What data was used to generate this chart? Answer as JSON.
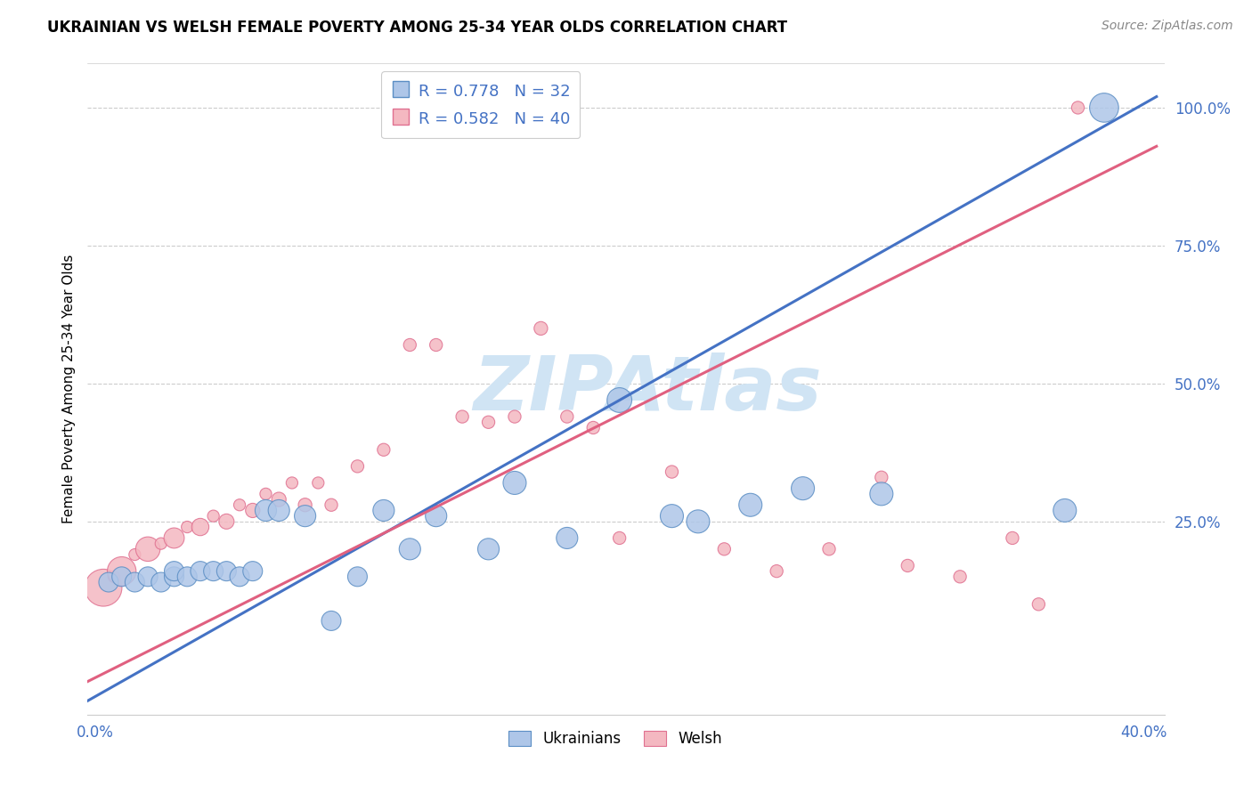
{
  "title": "UKRAINIAN VS WELSH FEMALE POVERTY AMONG 25-34 YEAR OLDS CORRELATION CHART",
  "source": "Source: ZipAtlas.com",
  "ylabel": "Female Poverty Among 25-34 Year Olds",
  "xlim": [
    -0.003,
    0.408
  ],
  "ylim": [
    -0.1,
    1.08
  ],
  "xticks": [
    0.0,
    0.05,
    0.1,
    0.15,
    0.2,
    0.25,
    0.3,
    0.35,
    0.4
  ],
  "xticklabels": [
    "0.0%",
    "",
    "",
    "",
    "",
    "",
    "",
    "",
    "40.0%"
  ],
  "ytick_vals": [
    0.25,
    0.5,
    0.75,
    1.0
  ],
  "yticklabels_right": [
    "25.0%",
    "50.0%",
    "75.0%",
    "100.0%"
  ],
  "legend_label_blue": "Ukrainians",
  "legend_label_pink": "Welsh",
  "legend_line1": "R = 0.778   N = 32",
  "legend_line2": "R = 0.582   N = 40",
  "blue_color": "#aec6e8",
  "pink_color": "#f4b8c1",
  "blue_edge_color": "#5b8ec4",
  "pink_edge_color": "#e07090",
  "blue_line_color": "#4472c4",
  "pink_line_color": "#e06080",
  "watermark": "ZIPAtlas",
  "watermark_color": "#d0e4f4",
  "blue_line_x0": -0.003,
  "blue_line_y0": -0.075,
  "blue_line_x1": 0.405,
  "blue_line_y1": 1.02,
  "pink_line_x0": -0.003,
  "pink_line_y0": -0.04,
  "pink_line_x1": 0.405,
  "pink_line_y1": 0.93,
  "blue_scatter_x": [
    0.005,
    0.01,
    0.015,
    0.02,
    0.025,
    0.03,
    0.03,
    0.035,
    0.04,
    0.045,
    0.05,
    0.055,
    0.06,
    0.065,
    0.07,
    0.08,
    0.09,
    0.1,
    0.11,
    0.12,
    0.13,
    0.15,
    0.16,
    0.18,
    0.2,
    0.22,
    0.23,
    0.25,
    0.27,
    0.3,
    0.37,
    0.385
  ],
  "blue_scatter_y": [
    0.14,
    0.15,
    0.14,
    0.15,
    0.14,
    0.15,
    0.16,
    0.15,
    0.16,
    0.16,
    0.16,
    0.15,
    0.16,
    0.27,
    0.27,
    0.26,
    0.07,
    0.15,
    0.27,
    0.2,
    0.26,
    0.2,
    0.32,
    0.22,
    0.47,
    0.26,
    0.25,
    0.28,
    0.31,
    0.3,
    0.27,
    1.0
  ],
  "blue_scatter_s": [
    25,
    25,
    25,
    25,
    25,
    25,
    25,
    25,
    25,
    25,
    25,
    25,
    25,
    30,
    30,
    30,
    25,
    25,
    30,
    30,
    30,
    30,
    35,
    30,
    40,
    35,
    35,
    35,
    35,
    35,
    35,
    55
  ],
  "pink_scatter_x": [
    0.003,
    0.007,
    0.01,
    0.015,
    0.02,
    0.025,
    0.03,
    0.035,
    0.04,
    0.045,
    0.05,
    0.055,
    0.06,
    0.065,
    0.07,
    0.075,
    0.08,
    0.085,
    0.09,
    0.1,
    0.11,
    0.12,
    0.13,
    0.14,
    0.15,
    0.16,
    0.17,
    0.18,
    0.19,
    0.2,
    0.22,
    0.24,
    0.26,
    0.28,
    0.3,
    0.31,
    0.33,
    0.35,
    0.36,
    0.375
  ],
  "pink_scatter_y": [
    0.13,
    0.15,
    0.16,
    0.19,
    0.2,
    0.21,
    0.22,
    0.24,
    0.24,
    0.26,
    0.25,
    0.28,
    0.27,
    0.3,
    0.29,
    0.32,
    0.28,
    0.32,
    0.28,
    0.35,
    0.38,
    0.57,
    0.57,
    0.44,
    0.43,
    0.44,
    0.6,
    0.44,
    0.42,
    0.22,
    0.34,
    0.2,
    0.16,
    0.2,
    0.33,
    0.17,
    0.15,
    0.22,
    0.1,
    1.0
  ],
  "pink_scatter_s": [
    300,
    30,
    180,
    30,
    130,
    30,
    90,
    30,
    65,
    30,
    50,
    30,
    45,
    30,
    45,
    30,
    40,
    30,
    35,
    35,
    35,
    35,
    35,
    35,
    35,
    35,
    40,
    35,
    35,
    35,
    35,
    35,
    35,
    35,
    35,
    35,
    35,
    35,
    35,
    35
  ]
}
